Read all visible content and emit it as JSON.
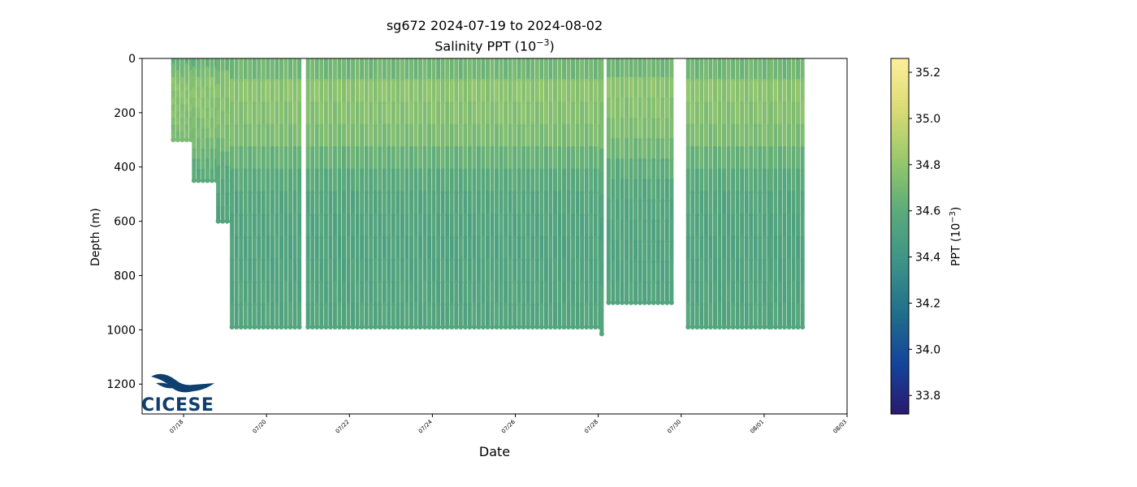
{
  "title_line1": "sg672 2024-07-19 to 2024-08-02",
  "title_line2_prefix": "Salinity PPT (10",
  "title_line2_sup": "−3",
  "title_line2_suffix": ")",
  "xlabel": "Date",
  "ylabel": "Depth (m)",
  "colorbar": {
    "label_prefix": "PPT (10",
    "label_sup": "−3",
    "label_suffix": ")",
    "range": [
      33.72,
      35.26
    ],
    "ticks": [
      "33.8",
      "34.0",
      "34.2",
      "34.4",
      "34.6",
      "34.8",
      "35.0",
      "35.2"
    ],
    "tick_values": [
      33.8,
      34.0,
      34.2,
      34.4,
      34.6,
      34.8,
      35.0,
      35.2
    ],
    "colormap": "haline",
    "colors": [
      "#2a186c",
      "#14439c",
      "#206e8b",
      "#3c9387",
      "#5aaa7b",
      "#96c86b",
      "#d9da74",
      "#fdee99"
    ]
  },
  "logo_text": "CICESE",
  "chart_data": {
    "type": "scatter",
    "x_axis": {
      "type": "date",
      "range": [
        "2024-07-17",
        "2024-08-03"
      ],
      "ticks": [
        "07/18",
        "07/20",
        "07/22",
        "07/24",
        "07/26",
        "07/28",
        "07/30",
        "08/01",
        "08/03"
      ]
    },
    "y_axis": {
      "range": [
        1310,
        0
      ],
      "inverted": true,
      "ticks": [
        0,
        200,
        400,
        600,
        800,
        1000,
        1200
      ]
    },
    "grid": false,
    "profiles": [
      {
        "time_range": [
          "2024-07-17 18:00",
          "2024-07-18 06:00"
        ],
        "max_depth_m": 300
      },
      {
        "time_range": [
          "2024-07-18 06:00",
          "2024-07-18 20:00"
        ],
        "max_depth_m": 450
      },
      {
        "time_range": [
          "2024-07-18 20:00",
          "2024-07-19 04:00"
        ],
        "max_depth_m": 600
      },
      {
        "time_range": [
          "2024-07-19 04:00",
          "2024-07-20 20:00"
        ],
        "max_depth_m": 990
      },
      {
        "time_range": [
          "2024-07-21 00:00",
          "2024-07-28 02:00"
        ],
        "max_depth_m": 990
      },
      {
        "time_range": [
          "2024-07-28 02:00",
          "2024-07-28 04:00"
        ],
        "max_depth_m": 1015
      },
      {
        "time_range": [
          "2024-07-28 06:00",
          "2024-07-29 20:00"
        ],
        "max_depth_m": 900
      },
      {
        "time_range": [
          "2024-07-30 04:00",
          "2024-08-01 04:00"
        ],
        "max_depth_m": 990
      },
      {
        "time_range": [
          "2024-08-01 04:00",
          "2024-08-02 00:00"
        ],
        "max_depth_m": 990
      }
    ],
    "salinity_by_depth": [
      {
        "depth_m": 0,
        "salinity": 34.62
      },
      {
        "depth_m": 100,
        "salinity": 34.78
      },
      {
        "depth_m": 200,
        "salinity": 34.76
      },
      {
        "depth_m": 300,
        "salinity": 34.72
      },
      {
        "depth_m": 400,
        "salinity": 34.62
      },
      {
        "depth_m": 500,
        "salinity": 34.56
      },
      {
        "depth_m": 700,
        "salinity": 34.53
      },
      {
        "depth_m": 1000,
        "salinity": 34.55
      }
    ]
  }
}
